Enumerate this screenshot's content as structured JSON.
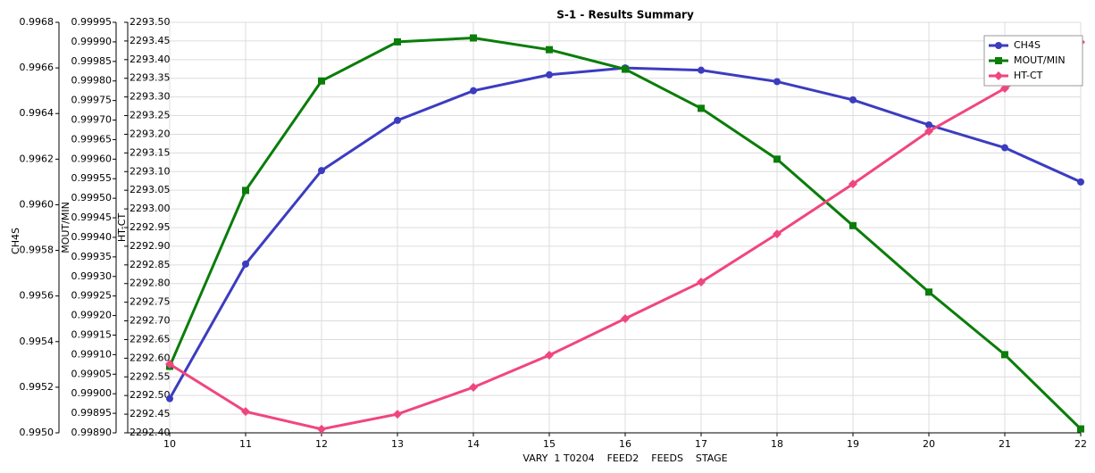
{
  "chart_data": {
    "type": "line",
    "title": "S-1 - Results Summary",
    "x_label": "VARY  1 T0204    FEED2    FEEDS    STAGE",
    "y_label": "CH4S",
    "y2_label": "MOUT/MIN",
    "y3_label": "HT-CT",
    "x": [
      10,
      11,
      12,
      13,
      14,
      15,
      16,
      17,
      18,
      19,
      20,
      21,
      22
    ],
    "xlim": [
      10,
      22
    ],
    "xticks": [
      10,
      11,
      12,
      13,
      14,
      15,
      16,
      17,
      18,
      19,
      20,
      21,
      22
    ],
    "ylim": [
      0.995,
      0.9968
    ],
    "yticks": [
      {
        "value": 0.995,
        "label": "0.9950"
      },
      0.9952,
      0.9954,
      0.9956,
      0.9958,
      {
        "value": 0.996,
        "label": "0.9960"
      },
      0.9962,
      0.9964,
      0.9966,
      0.9968
    ],
    "y2lim": [
      0.9989,
      0.99995
    ],
    "y2ticks": [
      {
        "value": 0.9989,
        "label": "0.99890"
      },
      0.99895,
      {
        "value": 0.999,
        "label": "0.99900"
      },
      0.99905,
      {
        "value": 0.9991,
        "label": "0.99910"
      },
      0.99915,
      {
        "value": 0.9992,
        "label": "0.99920"
      },
      0.99925,
      {
        "value": 0.9993,
        "label": "0.99930"
      },
      0.99935,
      {
        "value": 0.9994,
        "label": "0.99940"
      },
      0.99945,
      {
        "value": 0.9995,
        "label": "0.99950"
      },
      0.99955,
      {
        "value": 0.9996,
        "label": "0.99960"
      },
      0.99965,
      {
        "value": 0.9997,
        "label": "0.99970"
      },
      0.99975,
      {
        "value": 0.9998,
        "label": "0.99980"
      },
      0.99985,
      {
        "value": 0.9999,
        "label": "0.99990"
      },
      0.99995
    ],
    "y3lim": [
      2292.4,
      2293.5
    ],
    "y3ticks": [
      {
        "value": 2292.4,
        "label": "2292.40"
      },
      2292.45,
      {
        "value": 2292.5,
        "label": "2292.50"
      },
      2292.55,
      {
        "value": 2292.6,
        "label": "2292.60"
      },
      2292.65,
      {
        "value": 2292.7,
        "label": "2292.70"
      },
      2292.75,
      {
        "value": 2292.8,
        "label": "2292.80"
      },
      2292.85,
      {
        "value": 2292.9,
        "label": "2292.90"
      },
      2292.95,
      {
        "value": 2293.0,
        "label": "2293.00"
      },
      2293.05,
      {
        "value": 2293.1,
        "label": "2293.10"
      },
      2293.15,
      {
        "value": 2293.2,
        "label": "2293.20"
      },
      2293.25,
      {
        "value": 2293.3,
        "label": "2293.30"
      },
      2293.35,
      {
        "value": 2293.4,
        "label": "2293.40"
      },
      2293.45,
      {
        "value": 2293.5,
        "label": "2293.50"
      }
    ],
    "grid": true,
    "legend": "top-right",
    "series": [
      {
        "name": "CH4S",
        "color": "#3c3cc0",
        "marker": "circle",
        "axis": "y",
        "values": [
          0.99515,
          0.99574,
          0.99615,
          0.99637,
          0.9965,
          0.99657,
          0.9966,
          0.99659,
          0.99654,
          0.99646,
          0.99635,
          0.99625,
          0.9961
        ]
      },
      {
        "name": "MOUT/MIN",
        "color": "#0a7d0a",
        "marker": "square",
        "axis": "y2",
        "values": [
          0.99907,
          0.99952,
          0.9998,
          0.9999,
          0.99991,
          0.99988,
          0.99983,
          0.99973,
          0.9996,
          0.99943,
          0.99926,
          0.9991,
          0.99891
        ]
      },
      {
        "name": "HT-CT",
        "color": "#f0467f",
        "marker": "diamond",
        "axis": "y3",
        "values": [
          2292.584,
          2292.457,
          2292.41,
          2292.45,
          2292.522,
          2292.608,
          2292.706,
          2292.804,
          2292.933,
          2293.067,
          2293.208,
          2293.323,
          2293.447
        ]
      }
    ]
  }
}
